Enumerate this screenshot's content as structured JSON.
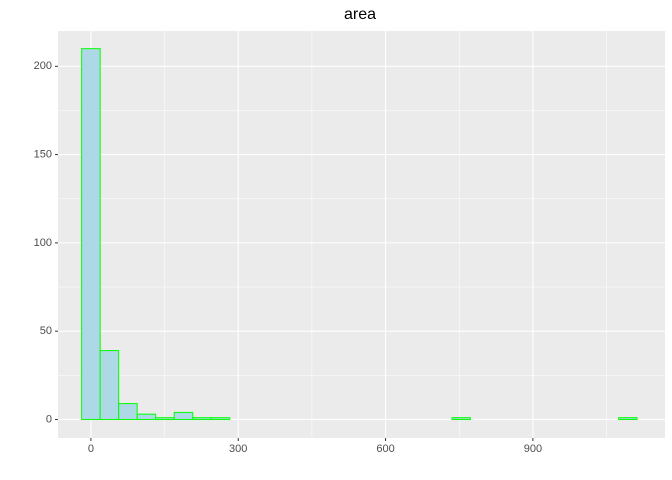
{
  "chart_data": {
    "type": "histogram",
    "title": "area",
    "bins": [
      -18.85,
      18.85,
      56.55,
      94.25,
      131.95,
      169.65,
      207.35,
      245.05,
      282.75,
      320.45,
      358.15,
      395.85,
      433.55,
      471.25,
      508.95,
      546.65,
      584.35,
      622.05,
      659.75,
      697.45,
      735.15,
      772.85,
      810.55,
      848.25,
      885.95,
      923.65,
      961.35,
      999.05,
      1036.75,
      1074.45,
      1112.15
    ],
    "values": [
      210,
      39,
      9,
      3,
      1,
      4,
      1,
      1,
      0,
      0,
      0,
      0,
      0,
      0,
      0,
      0,
      0,
      0,
      0,
      0,
      1,
      0,
      0,
      0,
      0,
      0,
      0,
      0,
      0,
      1
    ],
    "color": "#add8e6",
    "edge_color": "#00ff00",
    "xlim": [
      -67,
      1169
    ],
    "ylim": [
      -10.5,
      220
    ],
    "xticks": [
      0,
      300,
      600,
      900
    ],
    "yticks": [
      0,
      50,
      100,
      150,
      200
    ],
    "x_minor_grid": [
      150,
      450,
      750,
      1050
    ],
    "y_minor_grid": [
      25,
      75,
      125,
      175
    ],
    "grid": true
  }
}
